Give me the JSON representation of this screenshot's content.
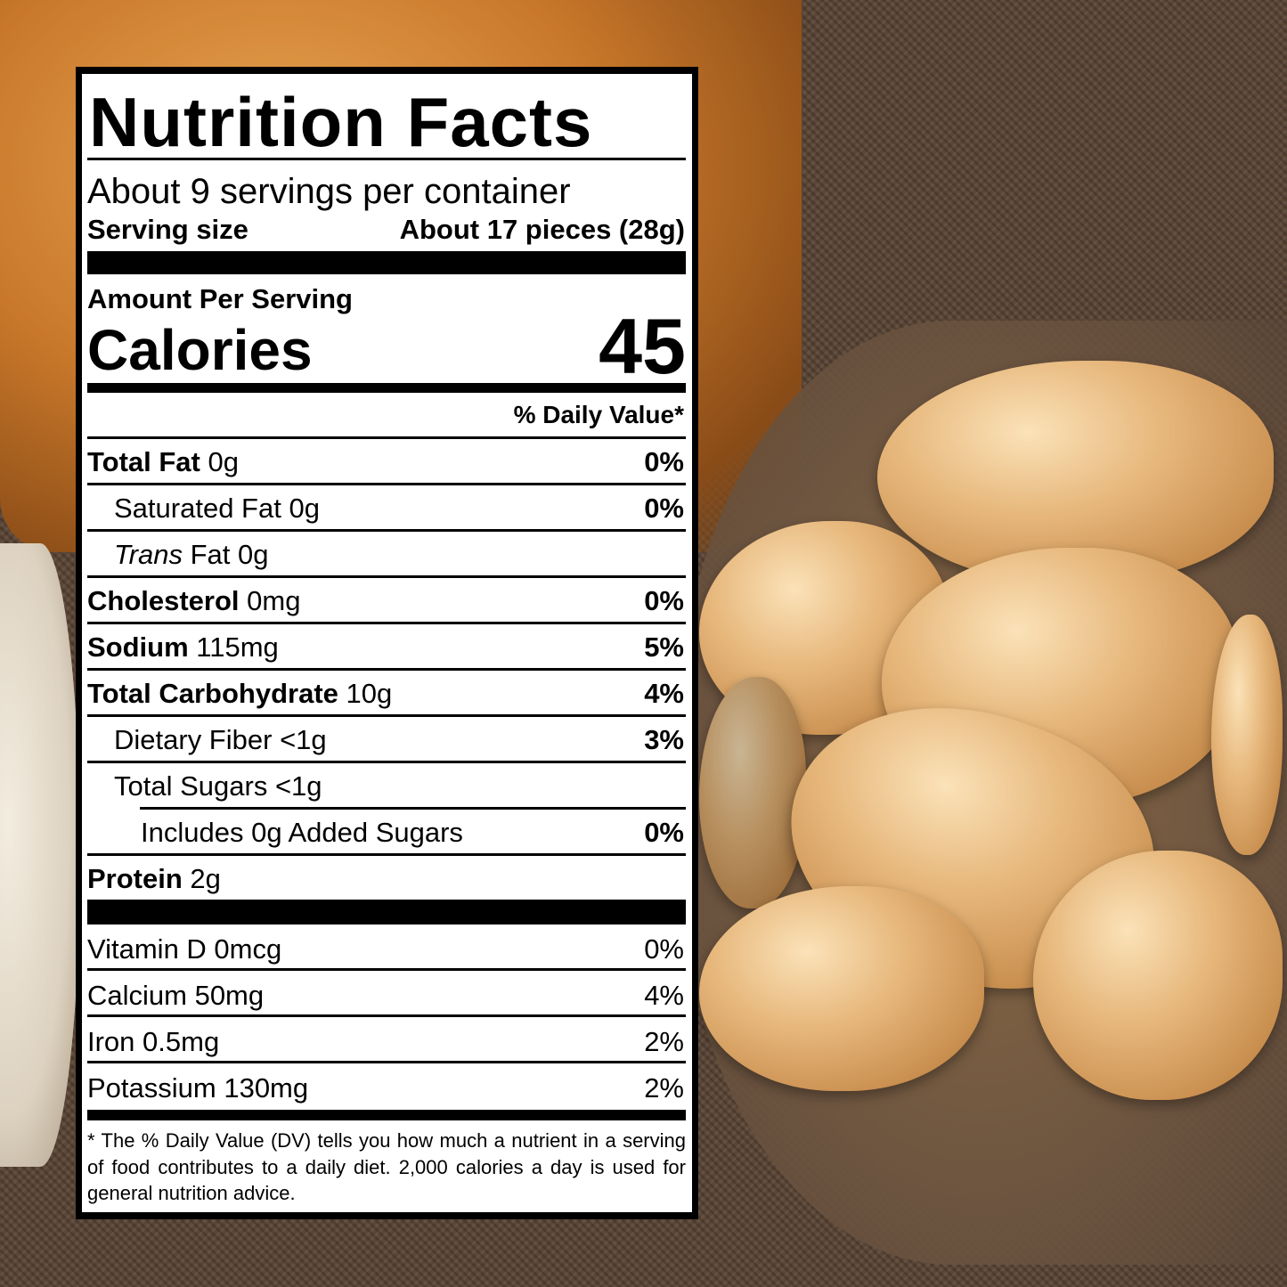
{
  "label": {
    "title": "Nutrition Facts",
    "servings_per_container": "About 9 servings per container",
    "serving_size_label": "Serving size",
    "serving_size_value": "About 17 pieces (28g)",
    "amount_per_serving": "Amount Per Serving",
    "calories_label": "Calories",
    "calories_value": "45",
    "daily_value_header": "% Daily Value*",
    "nutrients": [
      {
        "name": "Total Fat",
        "amount": "0g",
        "dv": "0%",
        "bold": true,
        "indent": 0
      },
      {
        "name": "Saturated Fat",
        "amount": "0g",
        "dv": "0%",
        "bold": false,
        "indent": 1
      },
      {
        "name_italic": "Trans",
        "name": "Fat",
        "amount": "0g",
        "dv": "",
        "bold": false,
        "indent": 1
      },
      {
        "name": "Cholesterol",
        "amount": "0mg",
        "dv": "0%",
        "bold": true,
        "indent": 0
      },
      {
        "name": "Sodium",
        "amount": "115mg",
        "dv": "5%",
        "bold": true,
        "indent": 0
      },
      {
        "name": "Total Carbohydrate",
        "amount": "10g",
        "dv": "4%",
        "bold": true,
        "indent": 0
      },
      {
        "name": "Dietary Fiber",
        "amount": "<1g",
        "dv": "3%",
        "bold": false,
        "indent": 1
      },
      {
        "name": "Total Sugars",
        "amount": "<1g",
        "dv": "",
        "bold": false,
        "indent": 1
      },
      {
        "name": "Includes 0g Added Sugars",
        "amount": "",
        "dv": "0%",
        "bold": false,
        "indent": 2
      },
      {
        "name": "Protein",
        "amount": "2g",
        "dv": "",
        "bold": true,
        "indent": 0
      }
    ],
    "vitamins": [
      {
        "name": "Vitamin D 0mcg",
        "dv": "0%"
      },
      {
        "name": "Calcium 50mg",
        "dv": "4%"
      },
      {
        "name": "Iron 0.5mg",
        "dv": "2%"
      },
      {
        "name": "Potassium 130mg",
        "dv": "2%"
      }
    ],
    "footnote": "* The % Daily Value (DV) tells you how much a nutrient in a serving of food contributes to a daily diet. 2,000 calories a day is used for general nutrition advice."
  }
}
